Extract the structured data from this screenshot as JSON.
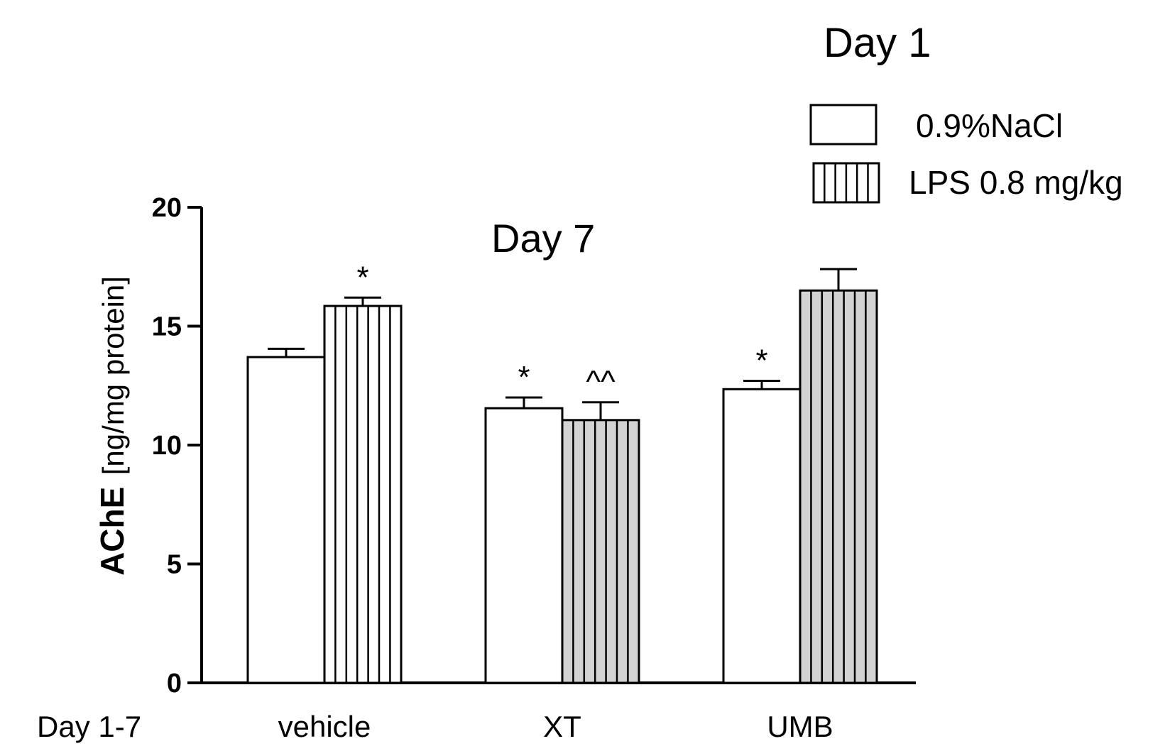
{
  "chart_data": {
    "type": "bar",
    "title": "Day 7",
    "legend_title": "Day 1",
    "legend_position": "top-right",
    "ylabel_bold": "AChE",
    "ylabel_unit": "[ng/mg protein]",
    "xaxis_row_label": "Day 1-7",
    "categories": [
      "vehicle",
      "XT",
      "UMB"
    ],
    "ylim": [
      0,
      20
    ],
    "yticks": [
      "0",
      "5",
      "10",
      "15",
      "20"
    ],
    "grid": false,
    "series": [
      {
        "name": "0.9%NaCl",
        "values": [
          13.7,
          11.55,
          12.35
        ],
        "errors": [
          0.35,
          0.45,
          0.35
        ],
        "annotations": [
          "",
          "*",
          "*"
        ],
        "fill": "#ffffff",
        "pattern": "none"
      },
      {
        "name": "LPS 0.8 mg/kg",
        "values": [
          15.85,
          11.05,
          16.5
        ],
        "errors": [
          0.35,
          0.75,
          0.9
        ],
        "annotations": [
          "*",
          "^^",
          ""
        ],
        "fills": [
          "#ffffff",
          "#d3d3d3",
          "#d3d3d3"
        ],
        "pattern": "vertical-lines"
      }
    ],
    "colors": {
      "axis": "#000000",
      "nacl_fill": "#ffffff",
      "lps_fill_vehicle": "#ffffff",
      "lps_fill_treated": "#d3d3d3"
    }
  }
}
